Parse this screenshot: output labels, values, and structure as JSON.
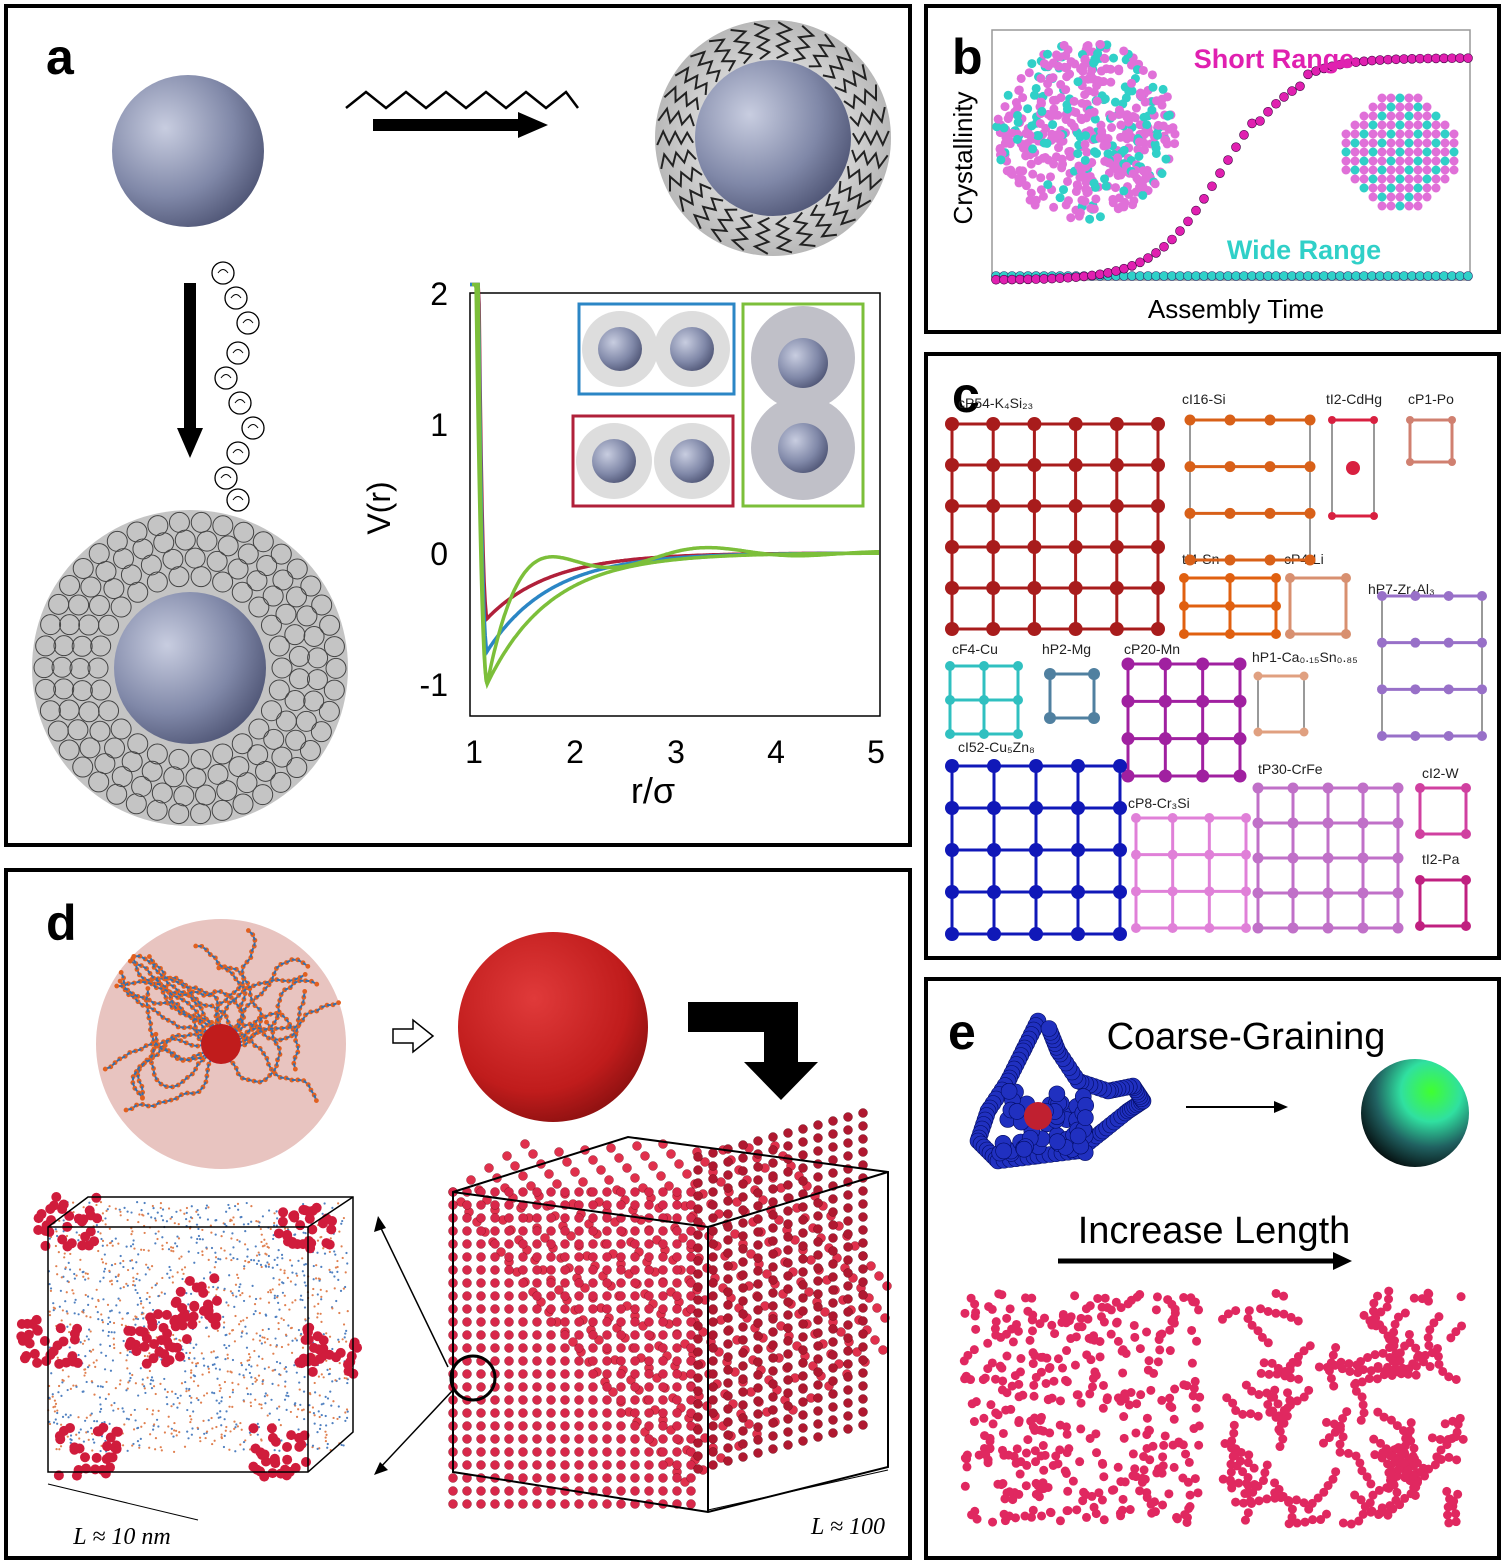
{
  "panel_a": {
    "label": "a",
    "plot": {
      "ylabel": "V(r)",
      "xlabel": "r/σ",
      "xticks": [
        "1",
        "2",
        "3",
        "4",
        "5"
      ],
      "yticks": [
        "2",
        "1",
        "0",
        "-1"
      ]
    }
  },
  "panel_b": {
    "label": "b",
    "ylabel": "Crystallinity",
    "xlabel": "Assembly Time",
    "short_range": "Short Range",
    "wide_range": "Wide Range"
  },
  "panel_c": {
    "label": "c",
    "structures": {
      "k4si23": "cP54-K₄Si₂₃",
      "si": "cI16-Si",
      "cdhg": "tI2-CdHg",
      "po": "cP1-Po",
      "sn": "tI4-Sn",
      "li": "cP4-Li",
      "zr4al3": "hP7-Zr₄Al₃",
      "cu": "cF4-Cu",
      "mg": "hP2-Mg",
      "mn": "cP20-Mn",
      "casn": "hP1-Ca₀.₁₅Sn₀.₈₅",
      "cu5zn8": "cI52-Cu₅Zn₈",
      "crfe": "tP30-CrFe",
      "w": "cI2-W",
      "cr3si": "cP8-Cr₃Si",
      "pa": "tI2-Pa"
    }
  },
  "panel_d": {
    "label": "d",
    "length_small": "L ≈ 10 nm",
    "length_large": "L ≈ 100"
  },
  "panel_e": {
    "label": "e",
    "title": "Coarse-Graining",
    "increase": "Increase Length"
  },
  "colors": {
    "blue_curve": "#2b86c5",
    "red_curve": "#b0203a",
    "green_curve": "#7cbf3a",
    "magenta": "#e020b0",
    "cyan": "#30d0c8",
    "np_sphere": "#8890b0",
    "red_sphere": "#c81e1e"
  }
}
